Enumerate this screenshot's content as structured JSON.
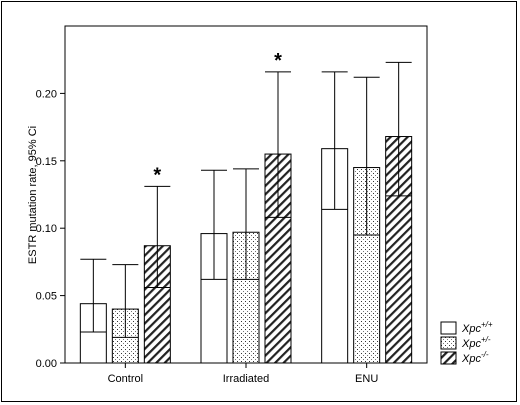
{
  "chart_data": {
    "type": "bar",
    "ylabel": "ESTR mutation rate, 95% Ci",
    "ylim": [
      0,
      0.25
    ],
    "yticks": [
      "0.00",
      "0.05",
      "0.10",
      "0.15",
      "0.20"
    ],
    "ytick_values": [
      0,
      0.05,
      0.1,
      0.15,
      0.2
    ],
    "categories": [
      "Control",
      "Irradiated",
      "ENU"
    ],
    "series": [
      {
        "name": "Xpc+/+",
        "label_base": "Xpc",
        "label_sup": "+/+",
        "pattern": "open",
        "values": [
          0.044,
          0.096,
          0.159
        ],
        "ci_low": [
          0.023,
          0.062,
          0.114
        ],
        "ci_high": [
          0.077,
          0.143,
          0.216
        ]
      },
      {
        "name": "Xpc+/-",
        "label_base": "Xpc",
        "label_sup": "+/-",
        "pattern": "dotted",
        "values": [
          0.04,
          0.097,
          0.145
        ],
        "ci_low": [
          0.019,
          0.062,
          0.095
        ],
        "ci_high": [
          0.073,
          0.144,
          0.212
        ]
      },
      {
        "name": "Xpc-/-",
        "label_base": "Xpc",
        "label_sup": "-/-",
        "pattern": "hatched",
        "values": [
          0.087,
          0.155,
          0.168
        ],
        "ci_low": [
          0.056,
          0.108,
          0.124
        ],
        "ci_high": [
          0.131,
          0.216,
          0.223
        ]
      }
    ],
    "annotations": [
      {
        "text": "*",
        "category": "Control",
        "series": "Xpc-/-"
      },
      {
        "text": "*",
        "category": "Irradiated",
        "series": "Xpc-/-"
      }
    ],
    "legend_position": "bottom-right",
    "grid": false
  }
}
